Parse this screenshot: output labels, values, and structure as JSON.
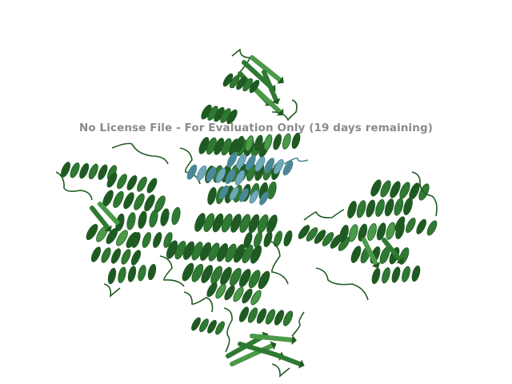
{
  "viewer": {
    "watermark_text": "No License File - For Evaluation Only (19 days remaining)"
  },
  "structure": {
    "representation": "cartoon",
    "colors": {
      "background": "#ffffff",
      "main_chain": "#2f7a32",
      "main_chain_dark": "#1f5a22",
      "main_chain_light": "#4a9a48",
      "bound_chain": "#6fa8b8",
      "bound_chain_dark": "#4a8898"
    },
    "domains": [
      {
        "name": "top-beta-domain",
        "element": "beta-sheet"
      },
      {
        "name": "central-helical-stack",
        "element": "helix-repeat"
      },
      {
        "name": "bound-partner",
        "element": "helix"
      },
      {
        "name": "left-kinase-like-domain",
        "element": "mixed"
      },
      {
        "name": "right-kinase-like-domain",
        "element": "mixed"
      },
      {
        "name": "bottom-beta-domain",
        "element": "beta-sheet"
      }
    ]
  }
}
